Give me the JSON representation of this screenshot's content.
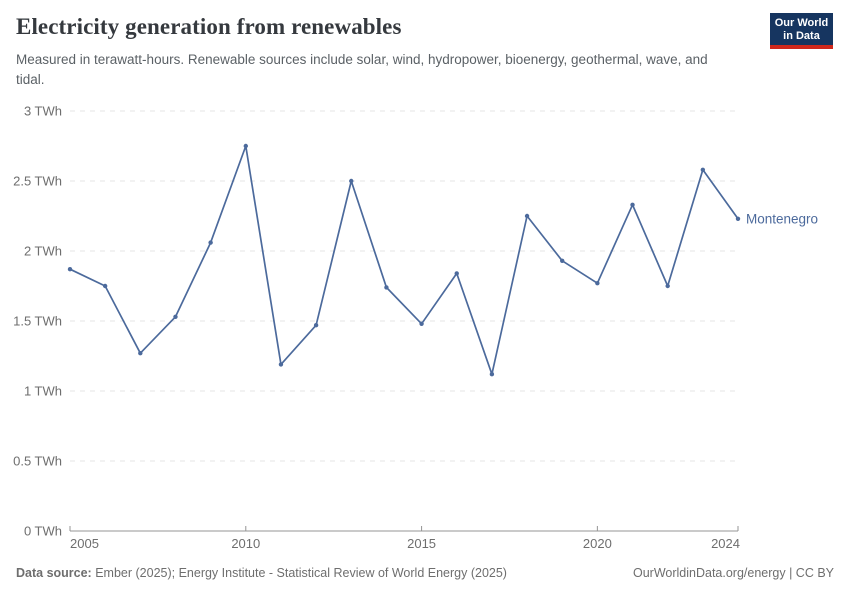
{
  "header": {
    "title": "Electricity generation from renewables",
    "subtitle": "Measured in terawatt-hours. Renewable sources include solar, wind, hydropower, bioenergy, geothermal, wave, and tidal.",
    "logo": {
      "line1": "Our World",
      "line2": "in Data"
    }
  },
  "chart_data": {
    "type": "line",
    "title": "Electricity generation from renewables",
    "unit": "TWh",
    "xlim": [
      2005,
      2024
    ],
    "ylim": [
      0,
      3
    ],
    "grid": "horizontal-dashed",
    "legend_position": "end-of-line-label",
    "x": [
      2005,
      2006,
      2007,
      2008,
      2009,
      2010,
      2011,
      2012,
      2013,
      2014,
      2015,
      2016,
      2017,
      2018,
      2019,
      2020,
      2021,
      2022,
      2023,
      2024
    ],
    "series": [
      {
        "name": "Montenegro",
        "color": "#4c6a9c",
        "values": [
          1.87,
          1.75,
          1.27,
          1.53,
          2.06,
          2.75,
          1.19,
          1.47,
          2.5,
          1.74,
          1.48,
          1.84,
          1.12,
          2.25,
          1.93,
          1.77,
          2.33,
          1.75,
          2.58,
          2.23
        ]
      }
    ],
    "y_ticks": [
      {
        "value": 0,
        "label": "0 TWh"
      },
      {
        "value": 0.5,
        "label": "0.5 TWh"
      },
      {
        "value": 1,
        "label": "1 TWh"
      },
      {
        "value": 1.5,
        "label": "1.5 TWh"
      },
      {
        "value": 2,
        "label": "2 TWh"
      },
      {
        "value": 2.5,
        "label": "2.5 TWh"
      },
      {
        "value": 3,
        "label": "3 TWh"
      }
    ],
    "x_ticks": [
      {
        "value": 2005,
        "label": "2005"
      },
      {
        "value": 2010,
        "label": "2010"
      },
      {
        "value": 2015,
        "label": "2015"
      },
      {
        "value": 2020,
        "label": "2020"
      },
      {
        "value": 2024,
        "label": "2024"
      }
    ],
    "colors": {
      "line": "#4c6a9c",
      "gridline": "#e4e4e4",
      "axis": "#949494",
      "tick_label": "#6e6e6e"
    }
  },
  "footer": {
    "source_label": "Data source:",
    "source_text": " Ember (2025); Energy Institute - Statistical Review of World Energy (2025)",
    "credit": "OurWorldinData.org/energy | CC BY"
  }
}
